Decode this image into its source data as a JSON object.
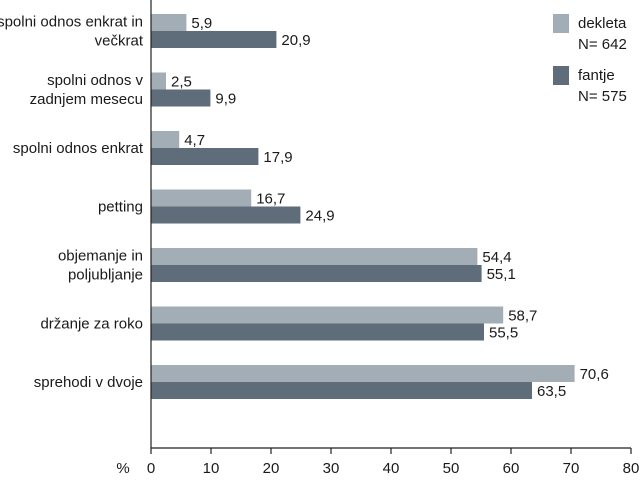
{
  "chart_data": {
    "type": "bar",
    "orientation": "horizontal",
    "categories": [
      [
        "spolni odnos enkrat in",
        "večkrat"
      ],
      [
        "spolni odnos v",
        "zadnjem mesecu"
      ],
      [
        "spolni odnos enkrat"
      ],
      [
        "petting"
      ],
      [
        "objemanje in",
        "poljubljanje"
      ],
      [
        "držanje za roko"
      ],
      [
        "sprehodi v dvoje"
      ]
    ],
    "series": [
      {
        "name": "dekleta",
        "sublabel": "N= 642",
        "color": "#a3adb5",
        "values": [
          5.9,
          2.5,
          4.7,
          16.7,
          54.4,
          58.7,
          70.6
        ],
        "labels": [
          "5,9",
          "2,5",
          "4,7",
          "16,7",
          "54,4",
          "58,7",
          "70,6"
        ]
      },
      {
        "name": "fantje",
        "sublabel": "N= 575",
        "color": "#5e6d79",
        "values": [
          20.9,
          9.9,
          17.9,
          24.9,
          55.1,
          55.5,
          63.5
        ],
        "labels": [
          "20,9",
          "9,9",
          "17,9",
          "24,9",
          "55,1",
          "55,5",
          "63,5"
        ]
      }
    ],
    "xlim": [
      0,
      80
    ],
    "xticks": [
      0,
      10,
      20,
      30,
      40,
      50,
      60,
      70,
      80
    ],
    "xlabel": "%",
    "grid": false,
    "legend_position": "top-right"
  }
}
